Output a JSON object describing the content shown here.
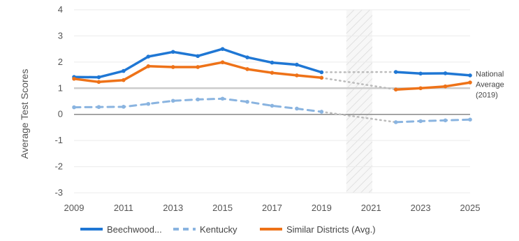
{
  "chart_data": {
    "type": "line",
    "ylabel": "Average Test Scores",
    "xlabel": "",
    "title": "",
    "ylim": [
      -3,
      4
    ],
    "xlim": [
      2009,
      2025
    ],
    "y_ticks": [
      "-3",
      "-2",
      "-1",
      "0",
      "1",
      "2",
      "3",
      "4"
    ],
    "x_ticks": [
      "2009",
      "2011",
      "2013",
      "2015",
      "2017",
      "2019",
      "2021",
      "2023",
      "2025"
    ],
    "gap_years": [
      2020,
      2021
    ],
    "reference_line": {
      "value": 1,
      "label_lines": [
        "National",
        "Average",
        "(2019)"
      ]
    },
    "legend_position": "bottom",
    "series": [
      {
        "name": "Beechwood...",
        "color": "#1f77d4",
        "style": "solid",
        "x": [
          2009,
          2010,
          2011,
          2012,
          2013,
          2014,
          2015,
          2016,
          2017,
          2018,
          2019,
          2022,
          2023,
          2024,
          2025
        ],
        "values": [
          1.43,
          1.42,
          1.66,
          2.21,
          2.39,
          2.23,
          2.5,
          2.18,
          1.98,
          1.9,
          1.61,
          1.62,
          1.56,
          1.57,
          1.49
        ]
      },
      {
        "name": "Kentucky",
        "color": "#8ab4e0",
        "style": "dashed",
        "x": [
          2009,
          2010,
          2011,
          2012,
          2013,
          2014,
          2015,
          2016,
          2017,
          2018,
          2019,
          2022,
          2023,
          2024,
          2025
        ],
        "values": [
          0.27,
          0.28,
          0.29,
          0.4,
          0.52,
          0.57,
          0.6,
          0.48,
          0.33,
          0.22,
          0.1,
          -0.3,
          -0.26,
          -0.23,
          -0.2
        ]
      },
      {
        "name": "Similar Districts (Avg.)",
        "color": "#ee7218",
        "style": "solid",
        "x": [
          2009,
          2010,
          2011,
          2012,
          2013,
          2014,
          2015,
          2016,
          2017,
          2018,
          2019,
          2022,
          2023,
          2024,
          2025
        ],
        "values": [
          1.36,
          1.24,
          1.31,
          1.84,
          1.81,
          1.81,
          1.99,
          1.73,
          1.59,
          1.49,
          1.4,
          0.95,
          1.0,
          1.07,
          1.22
        ]
      }
    ]
  }
}
